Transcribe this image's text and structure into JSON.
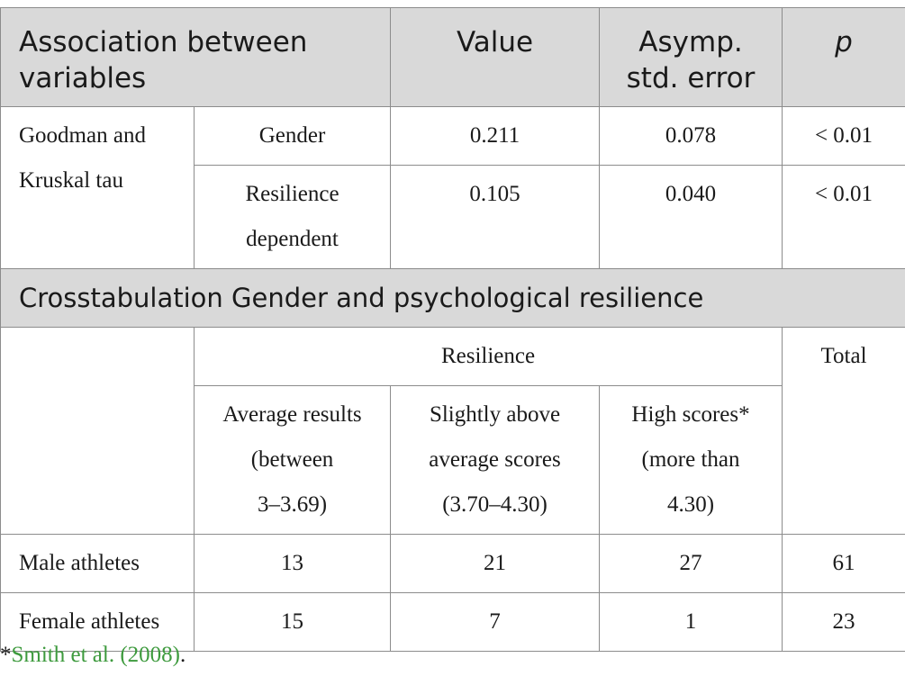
{
  "header": {
    "col1": [
      "Association between",
      "variables"
    ],
    "col2": "Value",
    "col3": [
      "Asymp.",
      "std. error"
    ],
    "col4": "p"
  },
  "association": {
    "label": [
      "Goodman and",
      "Kruskal tau"
    ],
    "rows": [
      {
        "name": [
          "Gender"
        ],
        "value": "0.211",
        "error": "0.078",
        "p": "< 0.01"
      },
      {
        "name": [
          "Resilience",
          "dependent"
        ],
        "value": "0.105",
        "error": "0.040",
        "p": "< 0.01"
      }
    ]
  },
  "crosstab": {
    "title": "Crosstabulation Gender and psychological resilience",
    "group_label": "Resilience",
    "total_label": "Total",
    "categories": [
      [
        "Average results",
        "(between",
        "3–3.69)"
      ],
      [
        "Slightly above",
        "average scores",
        "(3.70–4.30)"
      ],
      [
        "High scores*",
        "(more than",
        "4.30)"
      ]
    ],
    "rows": [
      {
        "label": "Male athletes",
        "values": [
          "13",
          "21",
          "27"
        ],
        "total": "61"
      },
      {
        "label": "Female athletes",
        "values": [
          "15",
          "7",
          "1"
        ],
        "total": "23"
      }
    ]
  },
  "footnote": {
    "marker": "*",
    "reference": "Smith et al. (2008)",
    "suffix": "."
  }
}
